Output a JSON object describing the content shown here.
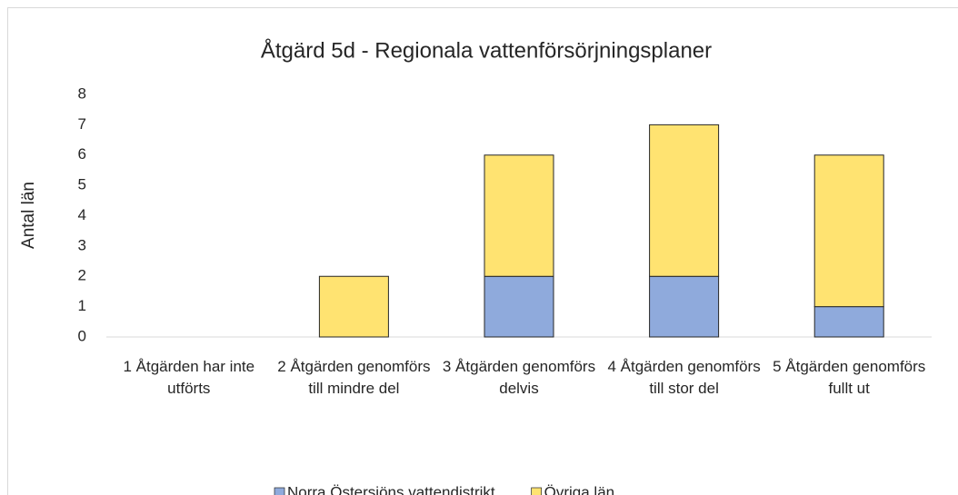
{
  "chart_data": {
    "type": "stacked_bar",
    "title": "Åtgärd 5d   - Regionala vattenförsörjningsplaner",
    "y_label": "Antal län",
    "categories": [
      "1 Åtgärden har inte utförts",
      "2 Åtgärden genomförs till mindre del",
      "3 Åtgärden genomförs delvis",
      "4 Åtgärden genomförs till stor del",
      "5 Åtgärden genomförs fullt ut"
    ],
    "series": [
      {
        "name": "Norra Östersjöns vattendistrikt",
        "color": "#8faadc",
        "values": [
          0,
          0,
          2,
          2,
          1
        ]
      },
      {
        "name": "Övriga län",
        "color": "#ffe371",
        "values": [
          0,
          2,
          4,
          5,
          5
        ]
      }
    ],
    "ylim": [
      0,
      8
    ],
    "yticks": [
      0,
      1,
      2,
      3,
      4,
      5,
      6,
      7,
      8
    ],
    "grid": false,
    "legend": "bottom"
  }
}
